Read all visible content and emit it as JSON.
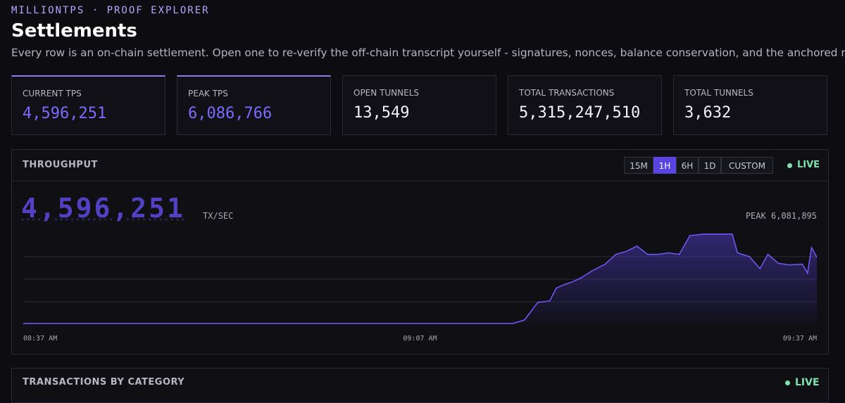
{
  "header": {
    "brand": "MILLIONTPS · PROOF EXPLORER",
    "title": "Settlements",
    "subtitle": "Every row is an on-chain settlement. Open one to re-verify the off-chain transcript yourself - signatures, nonces, balance conservation, and the anchored root."
  },
  "stats": [
    {
      "label": "CURRENT TPS",
      "value": "4,596,251"
    },
    {
      "label": "PEAK TPS",
      "value": "6,086,766"
    },
    {
      "label": "OPEN TUNNELS",
      "value": "13,549"
    },
    {
      "label": "TOTAL TRANSACTIONS",
      "value": "5,315,247,510"
    },
    {
      "label": "TOTAL TUNNELS",
      "value": "3,632"
    }
  ],
  "throughput": {
    "title": "THROUGHPUT",
    "ranges": [
      "15M",
      "1H",
      "6H",
      "1D",
      "CUSTOM"
    ],
    "active_range": "1H",
    "live": "LIVE",
    "current": "4,596,251",
    "unit": "TX/SEC",
    "peak_label": "PEAK",
    "peak": "6,081,895"
  },
  "chart_data": {
    "type": "area",
    "color": "#6d55f0",
    "grid": true,
    "x": [
      0,
      37,
      37.9,
      38.9,
      39.8,
      40.3,
      40.8,
      41.6,
      42.2,
      43.0,
      44.0,
      44.8,
      45.6,
      46.4,
      47.2,
      48.0,
      48.8,
      49.6,
      50.4,
      51.5,
      53.6,
      54.0,
      54.9,
      55.7,
      56.3,
      57.1,
      57.9,
      58.9,
      59.3,
      59.6,
      60
    ],
    "values": [
      50000,
      50000,
      280000,
      1450000,
      1550000,
      2400000,
      2600000,
      2850000,
      3100000,
      3550000,
      4000000,
      4650000,
      4850000,
      5200000,
      4650000,
      4650000,
      4750000,
      4650000,
      5900000,
      6000000,
      6000000,
      4750000,
      4500000,
      3700000,
      4650000,
      4050000,
      3950000,
      4000000,
      3400000,
      5100000,
      4460000
    ],
    "xlim": [
      0,
      60
    ],
    "xticks": [
      {
        "value": 0,
        "label": "08:37 AM"
      },
      {
        "value": 30,
        "label": "09:07 AM"
      },
      {
        "value": 60,
        "label": "09:37 AM"
      }
    ],
    "ylim": [
      0,
      6600000
    ],
    "yticks": [
      1500000,
      3000000,
      4500000
    ]
  },
  "category_panel": {
    "title": "TRANSACTIONS BY CATEGORY",
    "live": "LIVE"
  }
}
